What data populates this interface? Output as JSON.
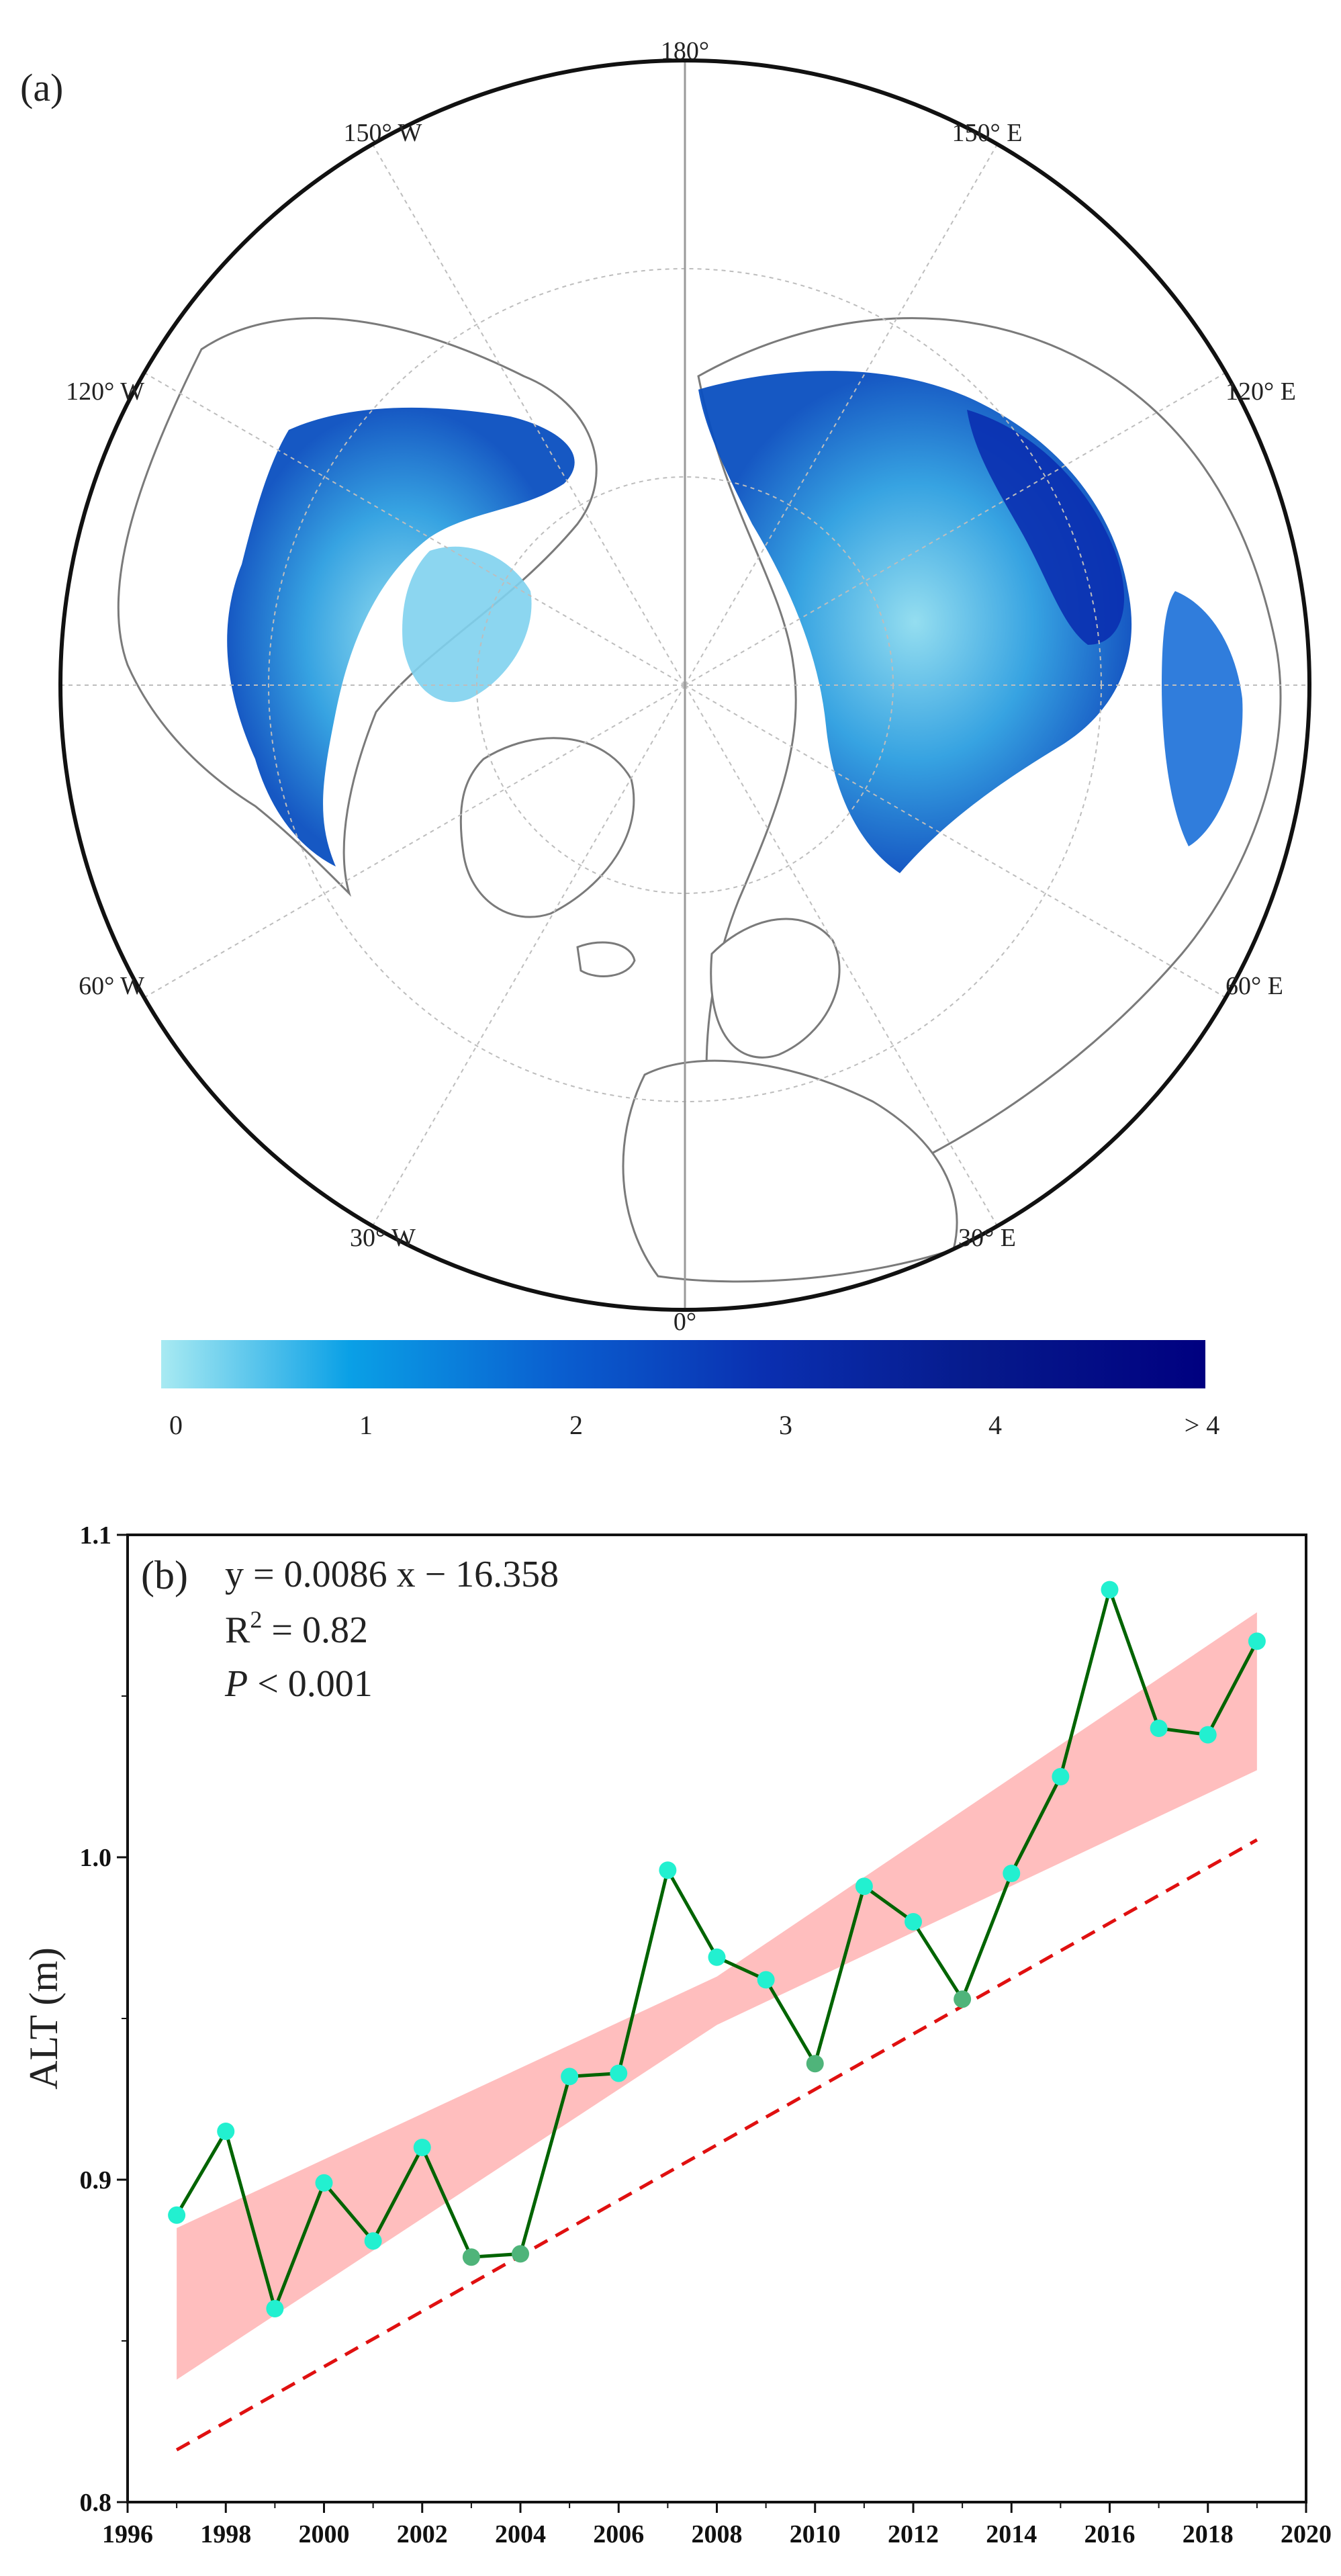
{
  "panel_a": {
    "label": "(a)",
    "longitude_labels": {
      "top": "180°",
      "w150": "150° W",
      "e150": "150° E",
      "w120": "120° W",
      "e120": "120° E",
      "w60": "60° W",
      "e60": "60° E",
      "w30": "30° W",
      "e30": "30° E",
      "bottom": "0°"
    },
    "colorbar": {
      "ticks": [
        "0",
        "1",
        "2",
        "3",
        "4",
        "> 4"
      ],
      "colors": [
        "#a8eaf2",
        "#0aa0e6",
        "#0a5fd0",
        "#0a2fb0",
        "#061a8c",
        "#000080"
      ]
    },
    "colors": {
      "land_fill": "#ffffff",
      "coast": "#7a7a7a",
      "grid": "#bdbdbd",
      "map_border": "#111111"
    }
  },
  "panel_b": {
    "label": "(b)",
    "equation": "y = 0.0086 x − 16.358",
    "r2_prefix": "R",
    "r2_sup": "2",
    "r2_value": " = 0.82",
    "p_symbol": "P",
    "p_value": " < 0.001",
    "colors": {
      "series_line": "#006400",
      "fit_line": "#e01010",
      "band": "#ffb3b3",
      "marker_cyan": "#22f0d0",
      "marker_green": "#4fb47a"
    }
  },
  "chart_data": {
    "type": "line",
    "title": "",
    "xlabel": "",
    "ylabel": "ALT (m)",
    "xlim": [
      1996,
      2020
    ],
    "ylim": [
      0.8,
      1.1
    ],
    "xticks": [
      "1996",
      "1998",
      "2000",
      "2002",
      "2004",
      "2006",
      "2008",
      "2010",
      "2012",
      "2014",
      "2016",
      "2018",
      "2020"
    ],
    "yticks": [
      "0.8",
      "0.9",
      "1.0",
      "1.1"
    ],
    "x": [
      1997,
      1998,
      1999,
      2000,
      2001,
      2002,
      2003,
      2004,
      2005,
      2006,
      2007,
      2008,
      2009,
      2010,
      2011,
      2012,
      2013,
      2014,
      2015,
      2016,
      2017,
      2018,
      2019
    ],
    "series": [
      {
        "values": [
          0.889,
          0.915,
          0.86,
          0.899,
          0.881,
          0.91,
          0.876,
          0.877,
          0.932,
          0.933,
          0.996,
          0.969,
          0.962,
          0.936,
          0.991,
          0.98,
          0.956,
          0.995,
          1.025,
          1.083,
          1.04,
          1.038,
          1.067
        ]
      }
    ],
    "fit": {
      "slope": 0.0086,
      "intercept": -16.358,
      "x_range": [
        1997,
        2019
      ]
    },
    "confidence_band": {
      "x": [
        1997,
        2008,
        2019
      ],
      "lower": [
        0.838,
        0.948,
        1.027
      ],
      "upper": [
        0.885,
        0.963,
        1.076
      ]
    },
    "grid": false,
    "legend": "none"
  }
}
